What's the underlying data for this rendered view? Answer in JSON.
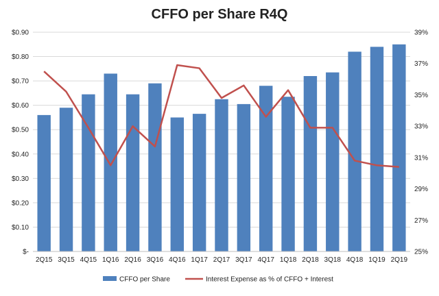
{
  "chart_data": {
    "type": "bar",
    "title": "CFFO per Share R4Q",
    "categories": [
      "2Q15",
      "3Q15",
      "4Q15",
      "1Q16",
      "2Q16",
      "3Q16",
      "4Q16",
      "1Q17",
      "2Q17",
      "3Q17",
      "4Q17",
      "1Q18",
      "2Q18",
      "3Q18",
      "4Q18",
      "1Q19",
      "2Q19"
    ],
    "series": [
      {
        "name": "CFFO per Share",
        "type": "bar",
        "axis": "left",
        "color": "#4f81bd",
        "values": [
          0.56,
          0.59,
          0.645,
          0.73,
          0.645,
          0.69,
          0.55,
          0.565,
          0.625,
          0.605,
          0.68,
          0.635,
          0.72,
          0.735,
          0.82,
          0.84,
          0.85
        ]
      },
      {
        "name": "Interest Expense as % of CFFO + Interest",
        "type": "line",
        "axis": "right",
        "color": "#c0504d",
        "values": [
          36.5,
          35.2,
          32.9,
          30.5,
          33.0,
          31.7,
          36.9,
          36.7,
          34.8,
          35.6,
          33.6,
          35.3,
          32.9,
          32.9,
          30.8,
          30.5,
          30.4
        ]
      }
    ],
    "y_left": {
      "lim": [
        0,
        0.9
      ],
      "ticks": [
        "$-",
        "$0.10",
        "$0.20",
        "$0.30",
        "$0.40",
        "$0.50",
        "$0.60",
        "$0.70",
        "$0.80",
        "$0.90"
      ]
    },
    "y_right": {
      "lim": [
        25,
        39
      ],
      "ticks": [
        "25%",
        "27%",
        "29%",
        "31%",
        "33%",
        "35%",
        "37%",
        "39%"
      ]
    },
    "grid": true,
    "legend_position": "bottom"
  }
}
